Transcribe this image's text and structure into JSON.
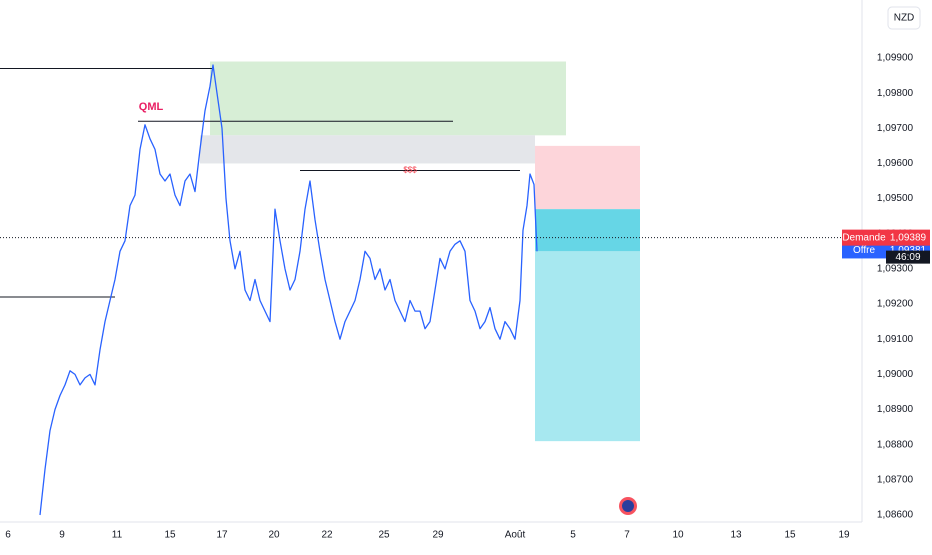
{
  "chart_data": {
    "type": "line",
    "currency": "NZD",
    "color": "#2962ff",
    "grid": false,
    "xlim": [
      0,
      862
    ],
    "ylim": [
      1.0858,
      1.10065
    ],
    "xticks": [
      {
        "value": 8,
        "label": "6"
      },
      {
        "value": 62,
        "label": "9"
      },
      {
        "value": 117,
        "label": "11"
      },
      {
        "value": 170,
        "label": "15"
      },
      {
        "value": 222,
        "label": "17"
      },
      {
        "value": 274,
        "label": "20"
      },
      {
        "value": 327,
        "label": "22"
      },
      {
        "value": 384,
        "label": "25"
      },
      {
        "value": 438,
        "label": "29"
      },
      {
        "value": 515,
        "label": "Août"
      },
      {
        "value": 573,
        "label": "5"
      },
      {
        "value": 627,
        "label": "7"
      },
      {
        "value": 678,
        "label": "10"
      },
      {
        "value": 736,
        "label": "13"
      },
      {
        "value": 790,
        "label": "15"
      },
      {
        "value": 844,
        "label": "19"
      }
    ],
    "yticks": [
      {
        "value": 1.099,
        "label": "1,09900"
      },
      {
        "value": 1.098,
        "label": "1,09800"
      },
      {
        "value": 1.097,
        "label": "1,09700"
      },
      {
        "value": 1.096,
        "label": "1,09600"
      },
      {
        "value": 1.095,
        "label": "1,09500"
      },
      {
        "value": 1.094,
        "label": "1,09400"
      },
      {
        "value": 1.093,
        "label": "1,09300"
      },
      {
        "value": 1.092,
        "label": "1,09200"
      },
      {
        "value": 1.091,
        "label": "1,09100"
      },
      {
        "value": 1.09,
        "label": "1,09000"
      },
      {
        "value": 1.089,
        "label": "1,08900"
      },
      {
        "value": 1.088,
        "label": "1,08800"
      },
      {
        "value": 1.087,
        "label": "1,08700"
      },
      {
        "value": 1.086,
        "label": "1,08600"
      }
    ],
    "x": [
      40,
      45,
      50,
      55,
      60,
      65,
      70,
      75,
      80,
      85,
      90,
      95,
      100,
      105,
      110,
      115,
      120,
      125,
      130,
      135,
      140,
      145,
      150,
      155,
      160,
      165,
      170,
      175,
      180,
      185,
      190,
      195,
      200,
      205,
      210,
      213,
      218,
      222,
      226,
      230,
      235,
      240,
      245,
      250,
      255,
      260,
      265,
      270,
      275,
      280,
      285,
      290,
      295,
      300,
      305,
      310,
      315,
      320,
      325,
      330,
      335,
      340,
      345,
      350,
      355,
      360,
      365,
      370,
      375,
      380,
      385,
      390,
      395,
      400,
      405,
      410,
      415,
      420,
      425,
      430,
      435,
      440,
      445,
      450,
      455,
      460,
      465,
      470,
      475,
      480,
      485,
      490,
      495,
      500,
      505,
      510,
      515,
      520,
      523,
      527,
      530,
      534,
      537
    ],
    "values": [
      1.086,
      1.0873,
      1.0884,
      1.089,
      1.0894,
      1.0897,
      1.0901,
      1.09,
      1.0897,
      1.0899,
      1.09,
      1.0897,
      1.0907,
      1.0915,
      1.0921,
      1.0927,
      1.0935,
      1.0938,
      1.0948,
      1.0951,
      1.0964,
      1.0971,
      1.0967,
      1.0964,
      1.0957,
      1.0955,
      1.0957,
      1.0951,
      1.0948,
      1.0955,
      1.0957,
      1.0952,
      1.0964,
      1.0975,
      1.0982,
      1.0988,
      1.0978,
      1.097,
      1.095,
      1.0938,
      1.093,
      1.0935,
      1.0924,
      1.0921,
      1.0927,
      1.0921,
      1.0918,
      1.0915,
      1.0947,
      1.0938,
      1.093,
      1.0924,
      1.0927,
      1.0935,
      1.0947,
      1.0955,
      1.0944,
      1.0935,
      1.0927,
      1.0921,
      1.0915,
      1.091,
      1.0915,
      1.0918,
      1.0921,
      1.0927,
      1.0935,
      1.0933,
      1.0927,
      1.093,
      1.0924,
      1.0927,
      1.0921,
      1.0918,
      1.0915,
      1.0921,
      1.0918,
      1.0918,
      1.0913,
      1.0915,
      1.0924,
      1.0933,
      1.093,
      1.0935,
      1.0937,
      1.0938,
      1.0935,
      1.0921,
      1.0918,
      1.0913,
      1.0915,
      1.0919,
      1.0913,
      1.091,
      1.0915,
      1.0913,
      1.091,
      1.0921,
      1.0941,
      1.0948,
      1.0957,
      1.0954,
      1.0935
    ],
    "zones": [
      {
        "x": [
          210,
          566
        ],
        "y": [
          1.0989,
          1.0968
        ],
        "color": "#d7eed6"
      },
      {
        "x": [
          200,
          535
        ],
        "y": [
          1.0968,
          1.096
        ],
        "color": "#e4e6ea"
      },
      {
        "x": [
          535,
          640
        ],
        "y": [
          1.0965,
          1.0947
        ],
        "color": "#fdd5da"
      },
      {
        "x": [
          535,
          640
        ],
        "y": [
          1.0947,
          1.0935
        ],
        "color": "#66d6e6"
      },
      {
        "x": [
          535,
          640
        ],
        "y": [
          1.0935,
          1.0881
        ],
        "color": "#a7e8f0"
      }
    ],
    "levels": [
      {
        "x": [
          0,
          212
        ],
        "value": 1.0987
      },
      {
        "x": [
          138,
          453
        ],
        "value": 1.0972
      },
      {
        "x": [
          300,
          520
        ],
        "value": 1.0958
      },
      {
        "x": [
          0,
          115
        ],
        "value": 1.0922
      }
    ],
    "annotations": [
      {
        "text": "QML",
        "x": 151,
        "y": 1.0976,
        "color": "#e91e63"
      },
      {
        "text": "$$$",
        "x": 410,
        "y": 1.0958,
        "color": "#f23645"
      }
    ],
    "price_tags": [
      {
        "name": "Offre",
        "value": 1.09381,
        "label": "1,09381",
        "color": "#2962ff"
      },
      {
        "name": "Demande",
        "value": 1.09389,
        "label": "1,09389",
        "color": "#f23645"
      }
    ],
    "countdown": "46:09"
  }
}
